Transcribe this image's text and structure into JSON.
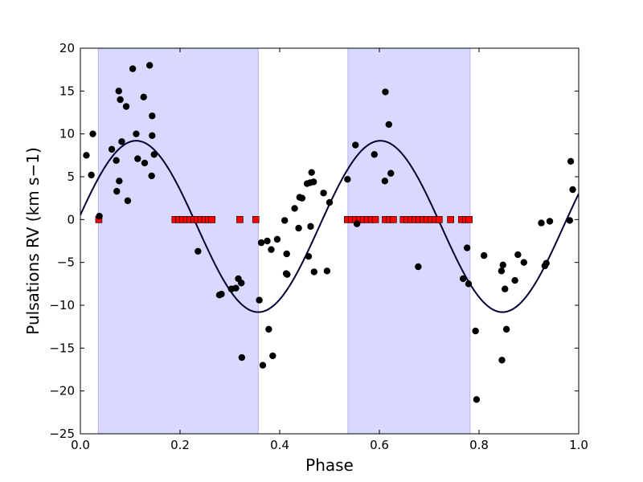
{
  "chart_data": {
    "type": "scatter",
    "title": "",
    "xlabel": "Phase",
    "ylabel": "Pulsations RV (km s−1)",
    "xlim": [
      0.0,
      1.0
    ],
    "ylim": [
      -25,
      20
    ],
    "xticks": [
      0.0,
      0.2,
      0.4,
      0.6,
      0.8,
      1.0
    ],
    "xtick_labels": [
      "0.0",
      "0.2",
      "0.4",
      "0.6",
      "0.8",
      "1.0"
    ],
    "yticks": [
      -25,
      -20,
      -15,
      -10,
      -5,
      0,
      5,
      10,
      15,
      20
    ],
    "ytick_labels": [
      "−25",
      "−20",
      "−15",
      "−10",
      "−5",
      "0",
      "5",
      "10",
      "15",
      "20"
    ],
    "grid": false,
    "legend": null,
    "colors": {
      "points": "#000000",
      "model": "#000033",
      "shade": "#d9d9ff",
      "shade_edge": "#b3b3e6",
      "markers": "#ff0000"
    },
    "shaded_regions": [
      {
        "x0": 0.036,
        "x1": 0.357
      },
      {
        "x0": 0.537,
        "x1": 0.782
      }
    ],
    "model_curve": {
      "mean": -0.8,
      "amplitude": 10.0,
      "period": 0.49,
      "phase_of_max": 0.112
    },
    "series": [
      {
        "marker": "circle",
        "points": [
          [
            0.012,
            7.5
          ],
          [
            0.022,
            5.2
          ],
          [
            0.025,
            10.0
          ],
          [
            0.038,
            0.4
          ],
          [
            0.063,
            8.2
          ],
          [
            0.072,
            6.9
          ],
          [
            0.073,
            3.3
          ],
          [
            0.077,
            15.0
          ],
          [
            0.078,
            4.5
          ],
          [
            0.08,
            14.0
          ],
          [
            0.083,
            9.1
          ],
          [
            0.092,
            13.2
          ],
          [
            0.095,
            2.2
          ],
          [
            0.105,
            17.6
          ],
          [
            0.112,
            10.0
          ],
          [
            0.115,
            7.1
          ],
          [
            0.127,
            14.3
          ],
          [
            0.129,
            6.6
          ],
          [
            0.139,
            18.0
          ],
          [
            0.143,
            5.1
          ],
          [
            0.144,
            12.1
          ],
          [
            0.144,
            9.8
          ],
          [
            0.148,
            7.6
          ],
          [
            0.236,
            -3.7
          ],
          [
            0.279,
            -8.8
          ],
          [
            0.283,
            -8.7
          ],
          [
            0.303,
            -8.1
          ],
          [
            0.312,
            -8.0
          ],
          [
            0.317,
            -6.9
          ],
          [
            0.323,
            -7.4
          ],
          [
            0.324,
            -16.1
          ],
          [
            0.359,
            -9.4
          ],
          [
            0.363,
            -2.7
          ],
          [
            0.366,
            -17.0
          ],
          [
            0.375,
            -2.5
          ],
          [
            0.378,
            -12.8
          ],
          [
            0.383,
            -3.5
          ],
          [
            0.386,
            -15.9
          ],
          [
            0.395,
            -2.3
          ],
          [
            0.41,
            -0.1
          ],
          [
            0.413,
            -6.3
          ],
          [
            0.414,
            -4.0
          ],
          [
            0.415,
            -6.4
          ],
          [
            0.43,
            1.3
          ],
          [
            0.438,
            -1.0
          ],
          [
            0.44,
            2.6
          ],
          [
            0.445,
            2.5
          ],
          [
            0.455,
            4.2
          ],
          [
            0.458,
            -4.3
          ],
          [
            0.461,
            4.3
          ],
          [
            0.462,
            -0.8
          ],
          [
            0.464,
            5.5
          ],
          [
            0.468,
            4.4
          ],
          [
            0.469,
            -6.1
          ],
          [
            0.488,
            3.1
          ],
          [
            0.495,
            -6.0
          ],
          [
            0.5,
            2.0
          ],
          [
            0.536,
            4.7
          ],
          [
            0.552,
            8.7
          ],
          [
            0.555,
            -0.5
          ],
          [
            0.59,
            7.6
          ],
          [
            0.611,
            4.5
          ],
          [
            0.612,
            14.9
          ],
          [
            0.619,
            11.1
          ],
          [
            0.623,
            5.4
          ],
          [
            0.678,
            -5.5
          ],
          [
            0.768,
            -6.9
          ],
          [
            0.776,
            -3.3
          ],
          [
            0.779,
            -7.5
          ],
          [
            0.793,
            -13.0
          ],
          [
            0.795,
            -21.0
          ],
          [
            0.81,
            -4.2
          ],
          [
            0.845,
            -6.0
          ],
          [
            0.846,
            -16.4
          ],
          [
            0.848,
            -5.3
          ],
          [
            0.852,
            -8.1
          ],
          [
            0.855,
            -12.8
          ],
          [
            0.872,
            -7.1
          ],
          [
            0.878,
            -4.1
          ],
          [
            0.89,
            -5.0
          ],
          [
            0.925,
            -0.4
          ],
          [
            0.932,
            -5.4
          ],
          [
            0.935,
            -5.1
          ],
          [
            0.942,
            -0.2
          ],
          [
            0.982,
            -0.1
          ],
          [
            0.984,
            6.8
          ],
          [
            0.988,
            3.5
          ]
        ]
      },
      {
        "marker": "square",
        "y": 0,
        "x": [
          0.037,
          0.19,
          0.198,
          0.206,
          0.213,
          0.22,
          0.228,
          0.235,
          0.242,
          0.25,
          0.257,
          0.264,
          0.32,
          0.352,
          0.536,
          0.544,
          0.552,
          0.56,
          0.568,
          0.576,
          0.584,
          0.592,
          0.612,
          0.62,
          0.628,
          0.648,
          0.656,
          0.664,
          0.672,
          0.68,
          0.688,
          0.696,
          0.704,
          0.712,
          0.72,
          0.743,
          0.765,
          0.773,
          0.78
        ]
      }
    ]
  }
}
